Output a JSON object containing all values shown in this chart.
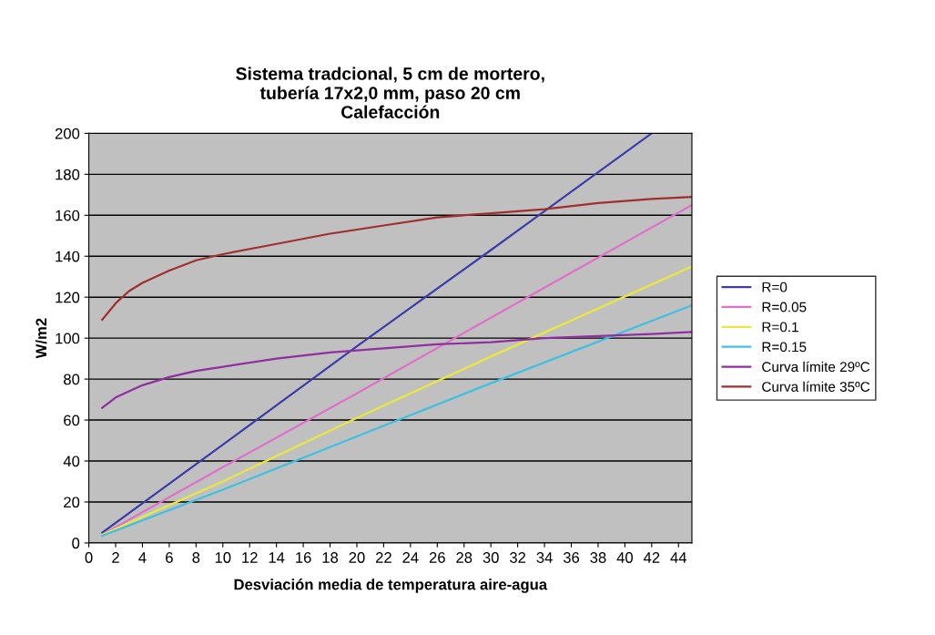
{
  "chart_data": {
    "type": "line",
    "title": "Sistema tradcional, 5 cm de mortero,\ntubería 17x2,0 mm, paso 20 cm\nCalefacción",
    "xlabel": "Desviación media de temperatura aire-agua",
    "ylabel": "W/m2",
    "xlim": [
      0,
      45
    ],
    "xticks": [
      0,
      2,
      4,
      6,
      8,
      10,
      12,
      14,
      16,
      18,
      20,
      22,
      24,
      26,
      28,
      30,
      32,
      34,
      36,
      38,
      40,
      42,
      44
    ],
    "ylim": [
      0,
      200
    ],
    "yticks": [
      0,
      20,
      40,
      60,
      80,
      100,
      120,
      140,
      160,
      180,
      200
    ],
    "grid": "y",
    "legend": "right",
    "marker": "none",
    "line_style": "solid",
    "series": [
      {
        "name": "R=0",
        "color": "#3c3caa",
        "x": [
          1,
          10,
          20,
          30,
          42
        ],
        "values": [
          5,
          48,
          96,
          143,
          200
        ]
      },
      {
        "name": "R=0.05",
        "color": "#e070c8",
        "x": [
          1,
          10,
          20,
          30,
          45
        ],
        "values": [
          4,
          37,
          73,
          110,
          165
        ]
      },
      {
        "name": "R=0.1",
        "color": "#e8e840",
        "x": [
          1,
          10,
          20,
          30,
          45
        ],
        "values": [
          4,
          30,
          61,
          91,
          135
        ]
      },
      {
        "name": "R=0.15",
        "color": "#40c0e0",
        "x": [
          1,
          10,
          20,
          30,
          45
        ],
        "values": [
          3.5,
          26,
          52,
          78,
          116
        ]
      },
      {
        "name": "Curva límite 29ºC",
        "color": "#9030a0",
        "x": [
          1,
          2,
          3,
          4,
          6,
          8,
          10,
          14,
          18,
          22,
          26,
          30,
          34,
          38,
          42,
          45
        ],
        "values": [
          66,
          71,
          74,
          77,
          81,
          84,
          86,
          90,
          93,
          95,
          97,
          98,
          100,
          101,
          102,
          103
        ]
      },
      {
        "name": "Curva límite 35ºC",
        "color": "#a03030",
        "x": [
          1,
          2,
          3,
          4,
          6,
          8,
          10,
          14,
          18,
          22,
          26,
          30,
          34,
          38,
          42,
          45
        ],
        "values": [
          109,
          117,
          123,
          127,
          133,
          138,
          141,
          146,
          151,
          155,
          159,
          161,
          163,
          166,
          168,
          169
        ]
      }
    ]
  }
}
